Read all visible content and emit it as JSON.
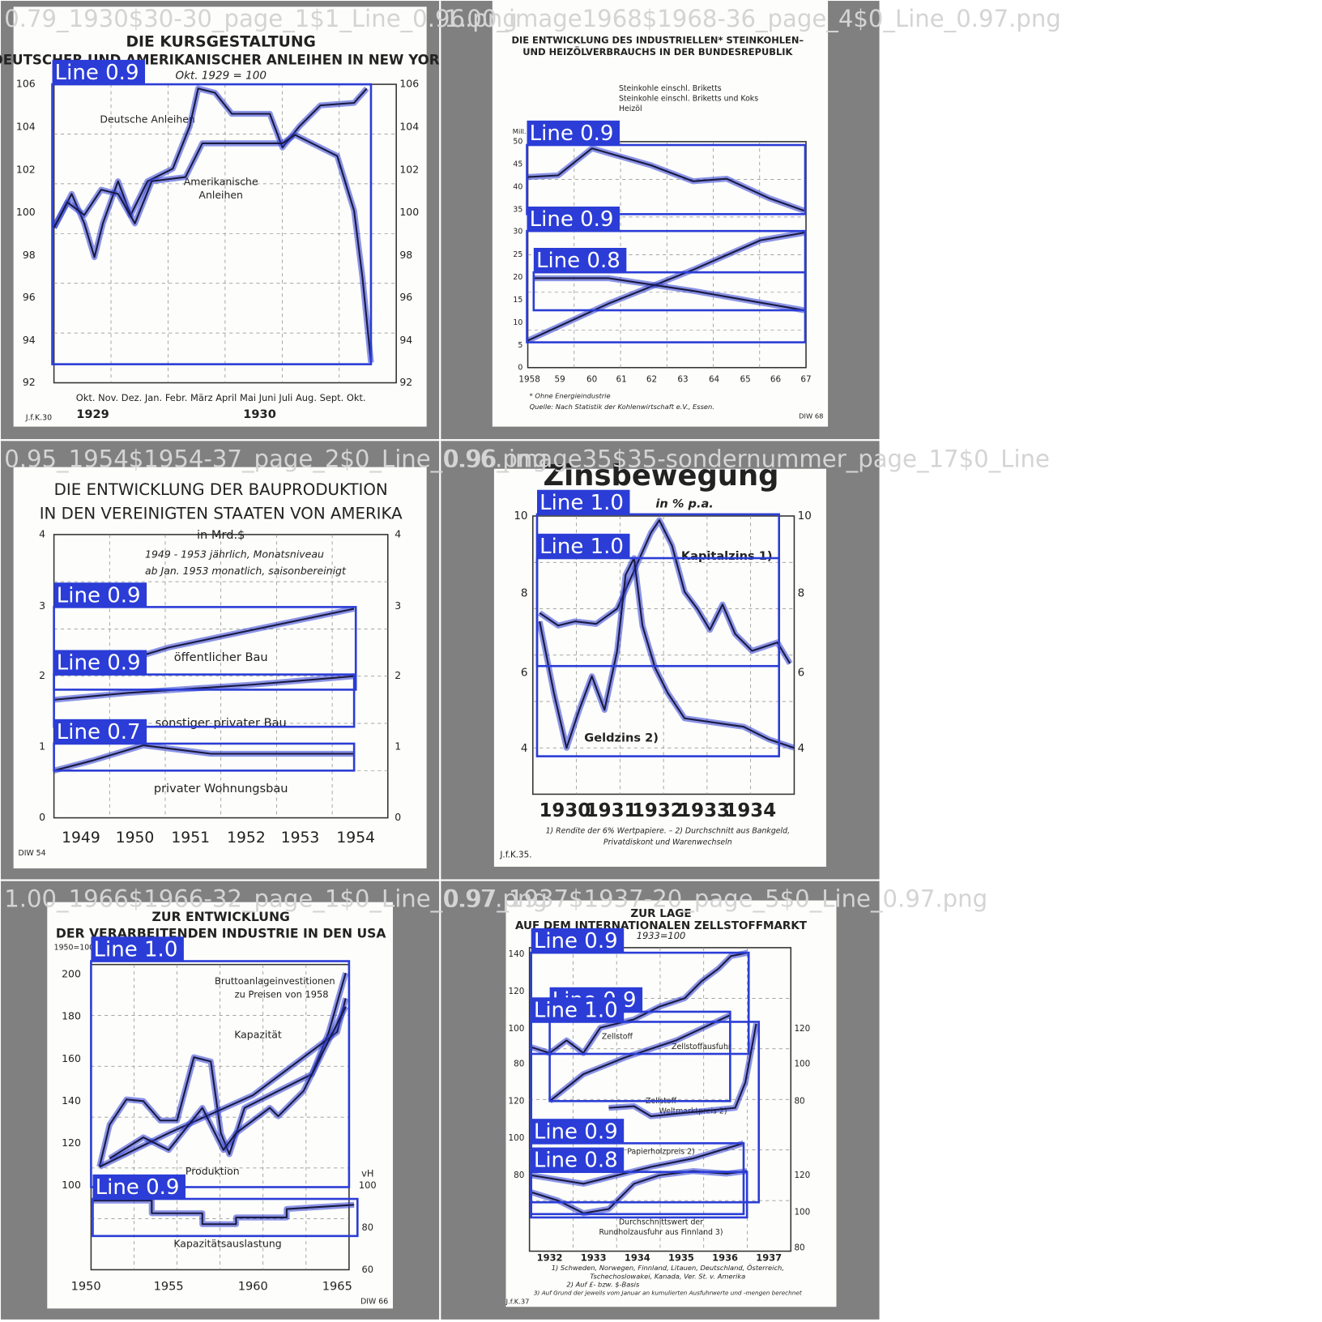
{
  "tiles": [
    {
      "filename": "0.79_1930$30-30_page_1$1_Line_0.96.png",
      "texts": [
        "DIE KURSGESTALTUNG",
        "DEUTSCHER UND AMERIKANISCHER ANLEIHEN IN NEW YORK",
        "Okt. 1929 = 100",
        "106",
        "104",
        "102",
        "100",
        "98",
        "96",
        "94",
        "92",
        "Deutsche Anleihen",
        "Amerikanische",
        "Anleihen",
        "Okt. Nov. Dez. Jan. Febr. März April Mai Juni Juli Aug. Sept. Okt.",
        "1929",
        "1930",
        "J.f.K.30"
      ],
      "detections": [
        "Line 0.9"
      ]
    },
    {
      "filename": "1.00_image1968$1968-36_page_4$0_Line_0.97.png",
      "texts": [
        "DIE ENTWICKLUNG DES INDUSTRIELLEN* STEINKOHLEN–",
        "UND HEIZÖLVERBRAUCHS IN DER BUNDESREPUBLIK",
        "Steinkohle einschl. Briketts",
        "Steinkohle einschl. Briketts und Koks",
        "Heizöl",
        "Mill. t",
        "50",
        "45",
        "40",
        "35",
        "30",
        "25",
        "20",
        "15",
        "10",
        "5",
        "0",
        "1958",
        "59",
        "60",
        "61",
        "62",
        "63",
        "64",
        "65",
        "66",
        "67",
        "* Ohne Energieindustrie",
        "Quelle: Nach Statistik der Kohlenwirtschaft e.V., Essen.",
        "DIW 68"
      ],
      "detections": [
        "Line 0.9",
        "Line 0.9",
        "Line 0.8"
      ]
    },
    {
      "filename": "0.95_1954$1954-37_page_2$0_Line_0.96.png",
      "texts": [
        "DIE ENTWICKLUNG DER BAUPRODUKTION",
        "IN DEN VEREINIGTEN STAATEN VON AMERIKA",
        "in Mrd.$",
        "1949 - 1953 jährlich, Monatsniveau",
        "ab Jan. 1953 monatlich, saisonbereinigt",
        "4",
        "3",
        "2",
        "1",
        "0",
        "öffentlicher Bau",
        "sonstiger privater Bau",
        "privater Wohnungsbau",
        "1949",
        "1950",
        "1951",
        "1952",
        "1953",
        "1954",
        "DIW 54"
      ],
      "detections": [
        "Line 0.9",
        "Line 0.9",
        "Line 0.7"
      ]
    },
    {
      "filename": "0.96_image35$35-sondernummer_page_17$0_Line",
      "texts": [
        "Zinsbewegung",
        "in % p.a.",
        "10",
        "8",
        "6",
        "4",
        "Kapitalzins 1)",
        "Geldzins 2)",
        "1930",
        "1931",
        "1932",
        "1933",
        "1934",
        "1) Rendite der 6% Wertpapiere. – 2) Durchschnitt aus Bankgeld,",
        "Privatdiskont und Warenwechseln",
        "J.f.K.35."
      ],
      "detections": [
        "Line 1.0",
        "Line 1.0"
      ]
    },
    {
      "filename": "1.00_1966$1966-32_page_1$0_Line_0.97.png",
      "texts": [
        "ZUR ENTWICKLUNG",
        "DER VERARBEITENDEN INDUSTRIE IN DEN USA",
        "1950=100",
        "200",
        "180",
        "160",
        "140",
        "120",
        "100",
        "vH",
        "100",
        "80",
        "60",
        "Bruttoanlageinvestitionen",
        "zu Preisen von 1958",
        "Kapazität",
        "Produktion",
        "Kapazitätsauslastung",
        "1950",
        "1955",
        "1960",
        "1965",
        "DIW 66"
      ],
      "detections": [
        "Line 1.0",
        "Line 0.9"
      ]
    },
    {
      "filename": "0.97_1937$1937-20_page_5$0_Line_0.97.png",
      "texts": [
        "ZUR LAGE",
        "AUF DEM INTERNATIONALEN ZELLSTOFFMARKT",
        "1933=100",
        "140",
        "120",
        "100",
        "80",
        "120",
        "100",
        "80",
        "120",
        "100",
        "80",
        "120",
        "100",
        "80",
        "Zellstoff",
        "Zellstoffausfuhr",
        "Zellstoff",
        "Weltmarktpreis 2)",
        "Papierholzpreis 2)",
        "Durchschnittswert der",
        "Rundholzausfuhr aus Finnland 3)",
        "1932",
        "1933",
        "1934",
        "1935",
        "1936",
        "1937",
        "1) Schweden, Norwegen, Finnland, Litauen, Deutschland, Österreich,",
        "Tschechoslowakei, Kanada, Ver. St. v. Amerika",
        "2) Auf £- bzw. $-Basis",
        "3) Auf Grund der jeweils vom Januar an kumulierten Ausfuhrwerte und -mengen berechnet",
        "J.f.K.37"
      ],
      "detections": [
        "Line 0.9",
        "Line 0.9",
        "Line 1.0",
        "Line 0.9",
        "Line 0.8"
      ]
    }
  ]
}
